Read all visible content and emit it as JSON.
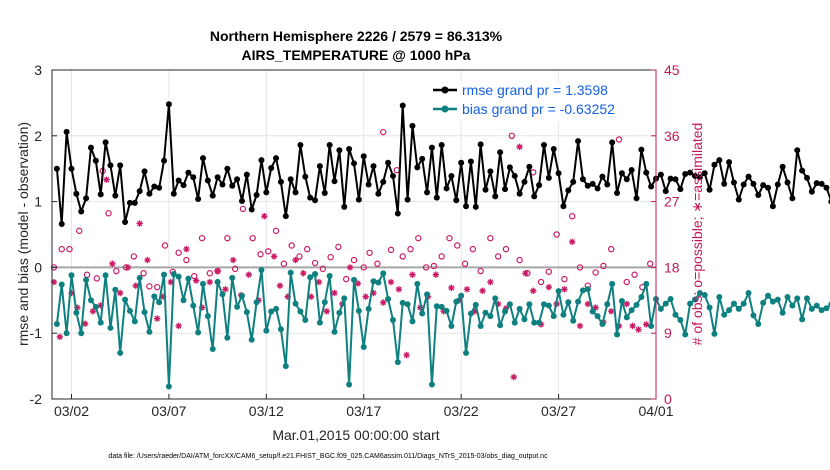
{
  "chart_data": {
    "type": "line",
    "title": "Northern Hemisphere 2226 / 2579 = 86.313%",
    "subtitle": "AIRS_TEMPERATURE @ 1000 hPa",
    "xlabel": "Mar.01,2015 00:00:00 start",
    "ylabel": "rmse and bias (model - observation)",
    "ylabel_right": "# of obs: o=possible; ∗=assimilated",
    "footer": "data file: /Users/raeder/DAI/ATM_forcXX/CAM6_setup/f.e21.FHIST_BGC.f09_025.CAM6assim.011/Diags_NTrS_2015-03/obs_diag_output.nc",
    "xlim": [
      0.5,
      31.5
    ],
    "ylim": [
      -2,
      3
    ],
    "ylim_right": [
      0,
      45
    ],
    "x_ticks": [
      1.5,
      6.5,
      11.5,
      16.5,
      21.5,
      26.5,
      31.5
    ],
    "x_tick_labels": [
      "03/02",
      "03/07",
      "03/12",
      "03/17",
      "03/22",
      "03/27",
      "04/01"
    ],
    "y_ticks": [
      -2,
      -1,
      0,
      1,
      2,
      3
    ],
    "y_tick_labels": [
      "-2",
      "-1",
      "0",
      "1",
      "2",
      "3"
    ],
    "y_ticks_right": [
      0,
      9,
      18,
      27,
      36,
      45
    ],
    "y_tick_labels_right": [
      "0",
      "9",
      "18",
      "27",
      "36",
      "45"
    ],
    "zero_line": 0,
    "legend_position": "top-right",
    "colors": {
      "rmse": "#000000",
      "bias": "#0f8080",
      "possible": "#cc1a66",
      "assimilated": "#cc1a66",
      "zero_line": "#a6a6a6",
      "right_axis": "#c2185b",
      "legend_text": "#1560e8"
    },
    "series": [
      {
        "name": "rmse grand pr = 1.3598",
        "key": "rmse",
        "marker": "filled-circle",
        "values": [
          1.5,
          0.66,
          2.06,
          1.5,
          1.12,
          0.85,
          1.05,
          1.82,
          1.62,
          1.11,
          1.9,
          1.55,
          1.09,
          1.55,
          0.69,
          0.98,
          0.98,
          1.16,
          1.46,
          1.12,
          1.23,
          1.21,
          1.62,
          2.48,
          1.12,
          1.32,
          1.25,
          1.44,
          1.37,
          1.04,
          1.66,
          1.32,
          1.09,
          1.37,
          1.26,
          1.5,
          1.24,
          1.34,
          1.01,
          1.41,
          0.88,
          1.1,
          1.63,
          1.14,
          1.51,
          1.66,
          1.3,
          0.78,
          1.34,
          1.14,
          1.86,
          1.38,
          1.06,
          1.02,
          1.54,
          1.13,
          1.86,
          1.31,
          1.78,
          0.92,
          1.8,
          1.58,
          1.03,
          1.69,
          1.26,
          1.54,
          1.12,
          1.3,
          1.59,
          1.39,
          0.82,
          2.46,
          1.03,
          2.15,
          1.52,
          1.65,
          1.14,
          1.82,
          1.06,
          1.86,
          1.2,
          1.39,
          1.02,
          1.59,
          0.93,
          1.61,
          0.92,
          1.87,
          1.18,
          1.46,
          1.08,
          1.75,
          1.19,
          1.52,
          1.39,
          1.12,
          1.3,
          1.53,
          1.08,
          1.25,
          1.86,
          1.36,
          1.8,
          1.43,
          0.93,
          1.17,
          1.3,
          1.92,
          1.34,
          1.24,
          1.27,
          1.2,
          1.38,
          1.26,
          1.9,
          1.13,
          1.43,
          1.34,
          1.48,
          1.05,
          1.79,
          1.44,
          1.23,
          1.35,
          1.41,
          1.16,
          1.35,
          1.34,
          1.19,
          1.42,
          1.44,
          1.39,
          1.37,
          1.43,
          1.18,
          1.56,
          1.63,
          1.27,
          1.6,
          1.29,
          1.03,
          1.26,
          1.38,
          1.27,
          1.1,
          1.25,
          1.21,
          0.93,
          1.26,
          1.53,
          1.29,
          1.05,
          1.78,
          1.47,
          1.36,
          1.15,
          1.28,
          1.27,
          1.21,
          1.0,
          1.15,
          1.1,
          1.33,
          0.85,
          1.1,
          1.5,
          1.3,
          1.58,
          1.41,
          1.2,
          1.43,
          1.27,
          1.54,
          1.14,
          1.72,
          1.12,
          1.26,
          1.39,
          0.8,
          1.61,
          0.86,
          1.26,
          1.05,
          1.24,
          1.12,
          1.27,
          0.98,
          1.39,
          1.19,
          2.38,
          1.56,
          1.48,
          1.0,
          1.71,
          1.85,
          1.87
        ]
      },
      {
        "name": "bias grand pr = -0.63252",
        "key": "bias",
        "marker": "filled-circle",
        "values": [
          -0.86,
          -0.26,
          -1.0,
          -0.12,
          -0.69,
          -1.0,
          -0.19,
          -0.5,
          -0.6,
          -0.84,
          -0.12,
          -0.92,
          -0.34,
          -1.3,
          -0.49,
          -0.66,
          -0.82,
          -0.16,
          -0.68,
          -0.98,
          -0.44,
          -0.53,
          -0.11,
          -1.81,
          -0.1,
          -0.14,
          -0.5,
          -0.17,
          -0.58,
          -0.99,
          -0.25,
          -0.74,
          -1.24,
          -0.22,
          -0.41,
          -1.07,
          -0.16,
          -0.6,
          -0.43,
          -0.68,
          -1.1,
          -0.53,
          -0.04,
          -0.96,
          -0.67,
          -0.63,
          -0.94,
          -1.5,
          -0.08,
          -0.55,
          -0.67,
          -0.8,
          -0.15,
          -0.1,
          -0.84,
          -0.53,
          -0.13,
          -0.98,
          -0.69,
          -0.47,
          -1.78,
          -0.19,
          -0.66,
          -1.21,
          -0.63,
          -0.21,
          -0.23,
          -0.09,
          -0.48,
          -0.8,
          -1.44,
          -0.54,
          -0.56,
          -0.82,
          -0.25,
          -0.7,
          -0.41,
          -1.78,
          -0.59,
          -0.6,
          -0.66,
          -0.89,
          -0.52,
          -0.43,
          -1.3,
          -0.7,
          -0.57,
          -0.89,
          -0.69,
          -0.74,
          -0.47,
          -0.88,
          -0.67,
          -0.56,
          -0.84,
          -0.63,
          -0.79,
          -0.56,
          -0.84,
          -0.84,
          -0.56,
          -0.58,
          -0.74,
          -0.36,
          -0.72,
          -0.53,
          -0.81,
          -0.52,
          -0.35,
          -0.33,
          -0.67,
          -0.74,
          -0.86,
          -0.56,
          -0.25,
          -1.02,
          -0.51,
          -0.76,
          -0.65,
          -0.57,
          -0.45,
          -0.25,
          -0.89,
          -0.48,
          -0.63,
          -0.55,
          -0.48,
          -0.72,
          -0.8,
          -1.02,
          -0.55,
          -0.49,
          -0.39,
          -0.42,
          -0.61,
          -1.01,
          -0.45,
          -0.72,
          -0.65,
          -0.55,
          -0.63,
          -0.55,
          -0.39,
          -0.73,
          -0.86,
          -0.54,
          -0.43,
          -0.52,
          -0.49,
          -0.69,
          -0.45,
          -0.58,
          -0.47,
          -0.79,
          -0.47,
          -0.63,
          -0.58,
          -0.65,
          -0.62,
          -0.56,
          -0.72,
          -0.93,
          -0.86,
          -0.46,
          -0.51,
          -0.84,
          -0.66,
          -0.25,
          -0.74,
          -0.21,
          -0.08,
          -0.35,
          -0.42,
          -0.77,
          -0.36,
          -0.26,
          0.35,
          -0.18,
          -0.52,
          -0.33,
          -0.77,
          -1.12,
          -0.81,
          -0.62,
          -0.74,
          -0.42,
          -0.71,
          -0.82,
          -0.84,
          -0.4,
          -0.63,
          -0.94,
          -0.93,
          -0.81,
          -0.94,
          -0.93,
          -1.0
        ]
      },
      {
        "name": "possible",
        "key": "possible",
        "marker": "open-circle",
        "axis": "right",
        "points": [
          [
            0.6,
            18.0
          ],
          [
            1.0,
            20.5
          ],
          [
            1.4,
            20.5
          ],
          [
            1.9,
            23.0
          ],
          [
            2.3,
            17.0
          ],
          [
            2.8,
            16.5
          ],
          [
            3.1,
            31.2
          ],
          [
            3.4,
            25.4
          ],
          [
            3.8,
            17.5
          ],
          [
            4.3,
            18.0
          ],
          [
            4.7,
            19.5
          ],
          [
            5.2,
            17.2
          ],
          [
            5.5,
            15.4
          ],
          [
            5.9,
            15.3
          ],
          [
            6.3,
            21.0
          ],
          [
            6.7,
            17.4
          ],
          [
            7.0,
            20.0
          ],
          [
            7.4,
            19.0
          ],
          [
            7.8,
            16.8
          ],
          [
            8.2,
            22.0
          ],
          [
            8.6,
            17.2
          ],
          [
            9.0,
            17.5
          ],
          [
            9.5,
            22.0
          ],
          [
            9.9,
            17.8
          ],
          [
            10.3,
            26.0
          ],
          [
            10.8,
            22.0
          ],
          [
            11.2,
            19.8
          ],
          [
            11.6,
            20.2
          ],
          [
            12.0,
            23.0
          ],
          [
            12.4,
            18.5
          ],
          [
            12.8,
            21.0
          ],
          [
            13.2,
            19.5
          ],
          [
            13.6,
            20.5
          ],
          [
            14.0,
            18.6
          ],
          [
            14.4,
            17.8
          ],
          [
            14.8,
            19.4
          ],
          [
            15.2,
            20.8
          ],
          [
            15.6,
            16.4
          ],
          [
            16.0,
            19.0
          ],
          [
            16.5,
            18.0
          ],
          [
            16.8,
            20.0
          ],
          [
            17.2,
            18.5
          ],
          [
            17.5,
            36.5
          ],
          [
            17.9,
            20.4
          ],
          [
            18.2,
            31.3
          ],
          [
            18.5,
            19.5
          ],
          [
            18.9,
            20.5
          ],
          [
            19.3,
            22.0
          ],
          [
            19.7,
            18.0
          ],
          [
            20.1,
            18.2
          ],
          [
            20.5,
            19.5
          ],
          [
            20.9,
            22.0
          ],
          [
            21.3,
            21.0
          ],
          [
            21.7,
            18.5
          ],
          [
            22.1,
            20.5
          ],
          [
            22.5,
            17.5
          ],
          [
            23.0,
            22.0
          ],
          [
            23.4,
            19.5
          ],
          [
            23.8,
            20.5
          ],
          [
            24.1,
            36.0
          ],
          [
            24.5,
            19.0
          ],
          [
            24.9,
            17.2
          ],
          [
            25.2,
            31.0
          ],
          [
            25.6,
            16.0
          ],
          [
            26.0,
            17.4
          ],
          [
            26.4,
            22.5
          ],
          [
            26.8,
            16.4
          ],
          [
            27.2,
            25.0
          ],
          [
            27.6,
            18.0
          ],
          [
            28.0,
            15.5
          ],
          [
            28.4,
            17.3
          ],
          [
            28.8,
            18.2
          ],
          [
            29.2,
            20.5
          ],
          [
            29.6,
            35.5
          ],
          [
            30.0,
            16.0
          ],
          [
            30.4,
            17.0
          ],
          [
            30.8,
            15.3
          ],
          [
            31.2,
            18.5
          ]
        ]
      },
      {
        "name": "assimilated",
        "key": "assimilated",
        "marker": "asterisk",
        "axis": "right",
        "points": [
          [
            0.6,
            16.0
          ],
          [
            0.9,
            8.5
          ],
          [
            1.5,
            14.5
          ],
          [
            1.8,
            12.5
          ],
          [
            2.2,
            10.3
          ],
          [
            2.6,
            12.0
          ],
          [
            3.0,
            12.8
          ],
          [
            3.3,
            30.0
          ],
          [
            3.6,
            18.5
          ],
          [
            4.0,
            14.5
          ],
          [
            4.4,
            18.0
          ],
          [
            4.8,
            15.5
          ],
          [
            5.0,
            24.0
          ],
          [
            5.4,
            19.0
          ],
          [
            5.9,
            11.0
          ],
          [
            6.2,
            14.0
          ],
          [
            6.6,
            16.0
          ],
          [
            7.0,
            10.0
          ],
          [
            7.4,
            20.5
          ],
          [
            7.9,
            16.2
          ],
          [
            8.2,
            12.5
          ],
          [
            8.6,
            16.0
          ],
          [
            9.0,
            17.5
          ],
          [
            9.4,
            15.0
          ],
          [
            9.8,
            19.0
          ],
          [
            10.2,
            14.2
          ],
          [
            10.6,
            17.0
          ],
          [
            11.1,
            13.5
          ],
          [
            11.4,
            25.0
          ],
          [
            11.9,
            19.5
          ],
          [
            12.2,
            15.5
          ],
          [
            12.6,
            14.0
          ],
          [
            13.0,
            19.0
          ],
          [
            13.4,
            17.2
          ],
          [
            13.8,
            14.0
          ],
          [
            14.2,
            16.0
          ],
          [
            14.6,
            12.0
          ],
          [
            15.0,
            14.5
          ],
          [
            15.4,
            13.0
          ],
          [
            15.8,
            18.0
          ],
          [
            16.2,
            15.8
          ],
          [
            16.6,
            14.0
          ],
          [
            17.0,
            14.5
          ],
          [
            17.5,
            13.2
          ],
          [
            17.9,
            16.0
          ],
          [
            18.3,
            15.0
          ],
          [
            18.7,
            6.0
          ],
          [
            19.0,
            17.0
          ],
          [
            19.4,
            12.5
          ],
          [
            19.8,
            14.0
          ],
          [
            20.2,
            17.0
          ],
          [
            20.6,
            12.0
          ],
          [
            21.0,
            15.2
          ],
          [
            21.4,
            13.5
          ],
          [
            21.8,
            15.0
          ],
          [
            22.2,
            12.0
          ],
          [
            22.6,
            14.8
          ],
          [
            23.0,
            16.0
          ],
          [
            23.4,
            13.0
          ],
          [
            23.8,
            12.4
          ],
          [
            24.2,
            3.0
          ],
          [
            24.5,
            34.5
          ],
          [
            24.8,
            17.2
          ],
          [
            25.2,
            14.8
          ],
          [
            25.6,
            10.2
          ],
          [
            26.0,
            15.3
          ],
          [
            26.4,
            13.0
          ],
          [
            26.8,
            15.0
          ],
          [
            27.2,
            21.5
          ],
          [
            27.6,
            10.0
          ],
          [
            28.0,
            13.0
          ],
          [
            28.4,
            12.5
          ],
          [
            28.8,
            10.5
          ],
          [
            29.2,
            12.0
          ],
          [
            29.6,
            10.0
          ],
          [
            30.0,
            13.0
          ],
          [
            30.3,
            10.0
          ],
          [
            30.6,
            9.5
          ],
          [
            31.0,
            10.2
          ]
        ]
      }
    ],
    "legend": {
      "rmse_label": "rmse grand pr = 1.3598",
      "bias_label": "bias grand pr = -0.63252"
    }
  }
}
